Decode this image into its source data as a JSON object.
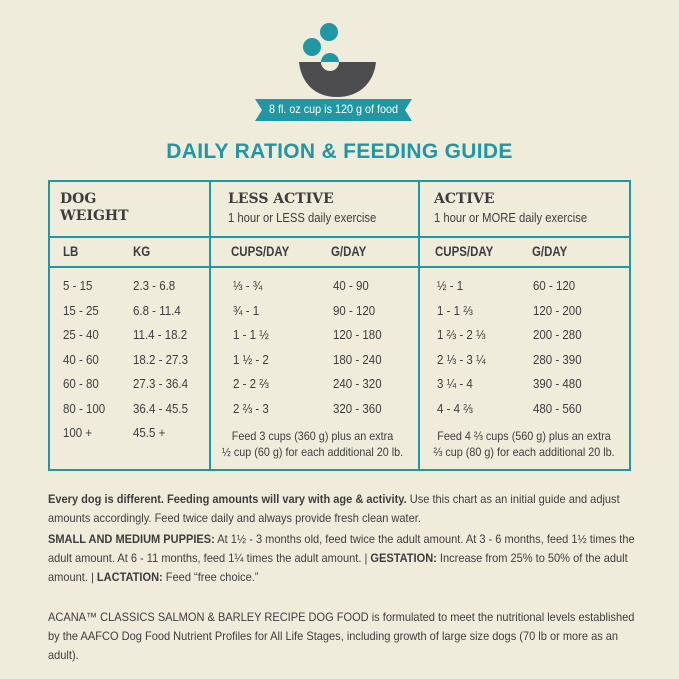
{
  "header": {
    "cup_note": "8 fl. oz cup is 120 g of food",
    "title": "DAILY RATION & FEEDING GUIDE"
  },
  "colors": {
    "accent": "#1f97a5",
    "bowl": "#4d4d4f",
    "background": "#f0ecdc"
  },
  "table": {
    "groups": [
      {
        "title": "DOG WEIGHT",
        "title_line1": "DOG",
        "title_line2": "WEIGHT",
        "cols": [
          "LB",
          "KG"
        ]
      },
      {
        "title": "LESS ACTIVE",
        "subtitle": "1 hour or LESS daily exercise",
        "cols": [
          "CUPS/DAY",
          "G/DAY"
        ]
      },
      {
        "title": "ACTIVE",
        "subtitle": "1 hour or MORE daily exercise",
        "cols": [
          "CUPS/DAY",
          "G/DAY"
        ]
      }
    ],
    "rows": [
      [
        "5 - 15",
        "2.3 - 6.8",
        "⅓ - ¾",
        "40 - 90",
        "½ - 1",
        "60 - 120"
      ],
      [
        "15 - 25",
        "6.8 - 11.4",
        "¾ - 1",
        "90 - 120",
        "1 - 1 ⅔",
        "120 - 200"
      ],
      [
        "25 - 40",
        "11.4 - 18.2",
        "1 - 1 ½",
        "120 - 180",
        "1 ⅔ - 2 ⅓",
        "200 - 280"
      ],
      [
        "40 - 60",
        "18.2 - 27.3",
        "1 ½ - 2",
        "180 - 240",
        "2 ⅓ - 3 ¼",
        "280 - 390"
      ],
      [
        "60 - 80",
        "27.3 - 36.4",
        "2 - 2 ⅔",
        "240 - 320",
        "3 ¼ - 4",
        "390 - 480"
      ],
      [
        "80 - 100",
        "36.4 - 45.5",
        "2 ⅔ - 3",
        "320 - 360",
        "4 - 4 ⅔",
        "480 - 560"
      ],
      [
        "100 +",
        "45.5 +"
      ]
    ],
    "notes": {
      "less_active": [
        "Feed 3 cups (360 g) plus an extra",
        "½ cup (60 g) for each additional 20 lb."
      ],
      "active": [
        "Feed 4 ⅔ cups (560 g) plus an extra",
        "⅔ cup (80 g) for each additional 20 lb."
      ]
    }
  },
  "text": {
    "p1_bold": "Every dog is different. Feeding amounts will vary with age & activity.",
    "p1_rest": " Use this chart as an initial guide and adjust amounts accordingly. Feed twice daily and always provide fresh clean water.",
    "p2_label1": "SMALL AND MEDIUM PUPPIES:",
    "p2_text1": " At 1½ - 3 months old, feed twice the adult amount. At 3 - 6 months, feed 1½ times the adult amount. At 6 - 11 months, feed 1¼ times the adult amount. | ",
    "p2_label2": "GESTATION:",
    "p2_text2": " Increase from 25% to 50% of the adult amount. | ",
    "p2_label3": "LACTATION:",
    "p2_text3": " Feed “free choice.”",
    "p3": "ACANA™ CLASSICS SALMON & BARLEY RECIPE DOG FOOD is formulated to meet the nutritional levels established by the AAFCO Dog Food Nutrient Profiles for All Life Stages, including growth of large size dogs (70 lb or more as an adult)."
  }
}
